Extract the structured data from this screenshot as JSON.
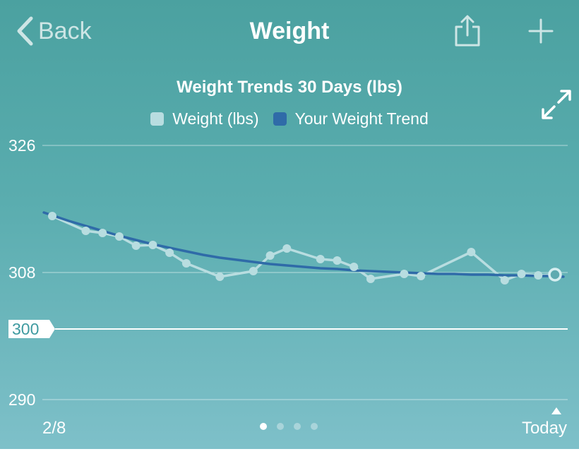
{
  "nav": {
    "back_label": "Back",
    "title": "Weight"
  },
  "icons": {
    "back": "chevron-left-icon",
    "share": "share-icon",
    "add": "plus-icon",
    "expand": "expand-icon"
  },
  "colors": {
    "weight_series": "#b8dde0",
    "trend_series": "#2f6ba8",
    "goal_line": "#ffffff"
  },
  "pager": {
    "count": 4,
    "active": 0
  },
  "chart_data": {
    "type": "line",
    "title": "Weight Trends 30 Days (lbs)",
    "legend": [
      "Weight (lbs)",
      "Your Weight Trend"
    ],
    "legend_placement": "top",
    "xlabel": "",
    "ylabel": "",
    "x_range": [
      0,
      30
    ],
    "x_tick_labels": [
      "2/8",
      "Today"
    ],
    "y_ticks": [
      326,
      308,
      290
    ],
    "ylim": [
      290,
      326
    ],
    "grid": true,
    "goal": {
      "value": 300,
      "label": "300"
    },
    "series": [
      {
        "name": "Weight (lbs)",
        "x": [
          0,
          2,
          3,
          4,
          5,
          6,
          7,
          8,
          10,
          12,
          13,
          14,
          16,
          17,
          18,
          19,
          21,
          22,
          25,
          27,
          28,
          29,
          30
        ],
        "y": [
          316,
          313.9,
          313.6,
          313.1,
          311.8,
          311.9,
          310.8,
          309.3,
          307.4,
          308.2,
          310.4,
          311.4,
          309.9,
          309.7,
          308.8,
          307.1,
          307.8,
          307.5,
          310.9,
          306.9,
          307.8,
          307.6,
          307.7
        ]
      },
      {
        "name": "Your Weight Trend",
        "x": [
          -0.5,
          1,
          2,
          3,
          4,
          5,
          6,
          7,
          8,
          9,
          10,
          11,
          12,
          13,
          14,
          15,
          16,
          17,
          18,
          19,
          20,
          21,
          22,
          23,
          24,
          25,
          26,
          27,
          28,
          29,
          30,
          30.5
        ],
        "y": [
          316.5,
          315.3,
          314.6,
          313.9,
          313.2,
          312.6,
          312.0,
          311.5,
          311.0,
          310.5,
          310.1,
          309.8,
          309.5,
          309.2,
          309.0,
          308.8,
          308.6,
          308.5,
          308.3,
          308.2,
          308.1,
          308.0,
          307.9,
          307.8,
          307.8,
          307.7,
          307.7,
          307.6,
          307.6,
          307.5,
          307.5,
          307.4
        ]
      }
    ]
  }
}
